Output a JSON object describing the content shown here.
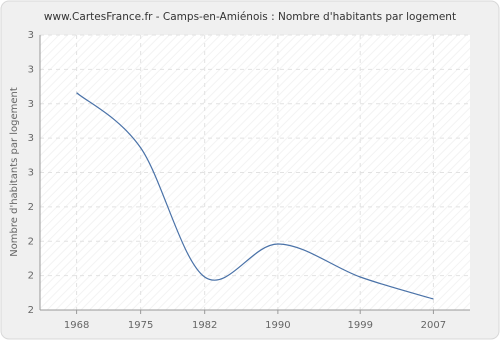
{
  "chart_data": {
    "type": "line",
    "title": "www.CartesFrance.fr - Camps-en-Amiénois : Nombre d'habitants par logement",
    "y_label": "Nombre d'habitants par logement",
    "x": [
      1968,
      1975,
      1982,
      1990,
      1999,
      2007
    ],
    "series": [
      {
        "name": "Nombre d'habitants par logement",
        "color": "#4a72a8",
        "values": [
          2.79,
          2.59,
          2.12,
          2.24,
          2.12,
          2.04
        ]
      }
    ],
    "xlim": [
      1964,
      2011
    ],
    "xticks": [
      1968,
      1975,
      1982,
      1990,
      1999,
      2007
    ],
    "ylim": [
      2,
      3
    ],
    "yticks": [
      {
        "value": 2,
        "label": "2"
      },
      {
        "value": 2.125,
        "label": "2"
      },
      {
        "value": 2.25,
        "label": "2"
      },
      {
        "value": 2.375,
        "label": "2"
      },
      {
        "value": 2.5,
        "label": "3"
      },
      {
        "value": 2.625,
        "label": "3"
      },
      {
        "value": 2.75,
        "label": "3"
      },
      {
        "value": 2.875,
        "label": "3"
      },
      {
        "value": 3,
        "label": "3"
      }
    ],
    "grid": true
  }
}
